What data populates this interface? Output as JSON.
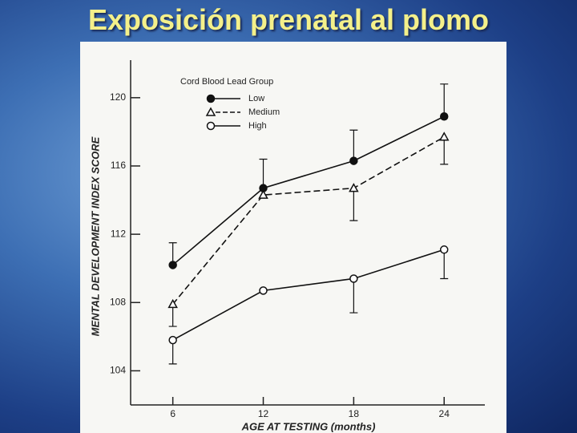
{
  "chart_data": {
    "type": "line",
    "title": "Exposición prenatal al plomo",
    "x_label": "AGE AT TESTING (months)",
    "y_label": "MENTAL DEVELOPMENT INDEX SCORE",
    "legend_title": "Cord Blood Lead Group",
    "x": [
      6,
      12,
      18,
      24
    ],
    "xlim": [
      3.2,
      26.7
    ],
    "xticks": [
      6,
      12,
      18,
      24
    ],
    "ylim": [
      102,
      122.2
    ],
    "yticks": [
      104,
      108,
      112,
      116,
      120
    ],
    "series": [
      {
        "name": "Low",
        "color": "#111111",
        "marker": "filled-circle",
        "dash": "solid",
        "error_side": "up",
        "values": [
          110.2,
          114.7,
          116.3,
          118.9
        ],
        "errors": [
          1.3,
          1.7,
          1.8,
          1.9
        ]
      },
      {
        "name": "Medium",
        "color": "#111111",
        "marker": "triangle",
        "dash": "dashed",
        "error_side": "down",
        "values": [
          107.9,
          114.3,
          114.7,
          117.7
        ],
        "errors": [
          1.3,
          null,
          1.9,
          1.6
        ]
      },
      {
        "name": "High",
        "color": "#111111",
        "marker": "open-circle",
        "dash": "solid",
        "error_side": "down",
        "values": [
          105.8,
          108.7,
          109.4,
          111.1
        ],
        "errors": [
          1.4,
          null,
          2.0,
          1.7
        ]
      }
    ]
  }
}
